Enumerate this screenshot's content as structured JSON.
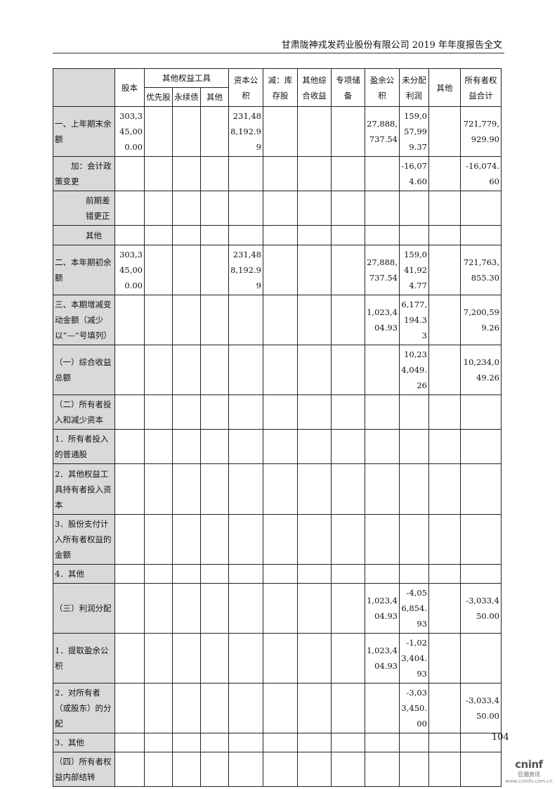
{
  "doc_header": "甘肃陇神戎发药业股份有限公司 2019 年年度报告全文",
  "columns": {
    "share_capital": "股本",
    "other_equity_tools": "其他权益工具",
    "preferred": "优先股",
    "perpetual": "永续债",
    "other_tool": "其他",
    "capital_reserve": "资本公积",
    "treasury": "减：库存股",
    "oci": "其他综合收益",
    "special_reserve": "专项储备",
    "surplus_reserve": "盈余公积",
    "retained": "未分配利润",
    "other": "其他",
    "total": "所有者权益合计"
  },
  "rows": [
    {
      "label": "一、上年期末余额",
      "cells": [
        "303,345,000.00",
        "",
        "",
        "",
        "231,488,192.99",
        "",
        "",
        "",
        "27,888,737.54",
        "159,057,999.37",
        "",
        "721,779,929.90"
      ]
    },
    {
      "label": "加：会计政策变更",
      "indent": true,
      "cells": [
        "",
        "",
        "",
        "",
        "",
        "",
        "",
        "",
        "",
        "-16,074.60",
        "",
        "-16,074.60"
      ]
    },
    {
      "label": "前期差错更正",
      "indent2": true,
      "cells": [
        "",
        "",
        "",
        "",
        "",
        "",
        "",
        "",
        "",
        "",
        "",
        ""
      ]
    },
    {
      "label": "其他",
      "indent2": true,
      "cells": [
        "",
        "",
        "",
        "",
        "",
        "",
        "",
        "",
        "",
        "",
        "",
        ""
      ]
    },
    {
      "label": "二、本年期初余额",
      "cells": [
        "303,345,000.00",
        "",
        "",
        "",
        "231,488,192.99",
        "",
        "",
        "",
        "27,888,737.54",
        "159,041,924.77",
        "",
        "721,763,855.30"
      ]
    },
    {
      "label": "三、本期增减变动金额（减少以“—”号填列）",
      "cells": [
        "",
        "",
        "",
        "",
        "",
        "",
        "",
        "",
        "1,023,404.93",
        "6,177,194.33",
        "",
        "7,200,599.26"
      ]
    },
    {
      "label": "（一）综合收益总额",
      "cells": [
        "",
        "",
        "",
        "",
        "",
        "",
        "",
        "",
        "",
        "10,234,049.26",
        "",
        "10,234,049.26"
      ]
    },
    {
      "label": "（二）所有者投入和减少资本",
      "cells": [
        "",
        "",
        "",
        "",
        "",
        "",
        "",
        "",
        "",
        "",
        "",
        ""
      ]
    },
    {
      "label": "1．所有者投入的普通股",
      "cells": [
        "",
        "",
        "",
        "",
        "",
        "",
        "",
        "",
        "",
        "",
        "",
        ""
      ]
    },
    {
      "label": "2．其他权益工具持有者投入资本",
      "cells": [
        "",
        "",
        "",
        "",
        "",
        "",
        "",
        "",
        "",
        "",
        "",
        ""
      ]
    },
    {
      "label": "3．股份支付计入所有者权益的金额",
      "cells": [
        "",
        "",
        "",
        "",
        "",
        "",
        "",
        "",
        "",
        "",
        "",
        ""
      ]
    },
    {
      "label": "4．其他",
      "cells": [
        "",
        "",
        "",
        "",
        "",
        "",
        "",
        "",
        "",
        "",
        "",
        ""
      ]
    },
    {
      "label": "（三）利润分配",
      "cells": [
        "",
        "",
        "",
        "",
        "",
        "",
        "",
        "",
        "1,023,404.93",
        "-4,056,854.93",
        "",
        "-3,033,450.00"
      ]
    },
    {
      "label": "1．提取盈余公积",
      "cells": [
        "",
        "",
        "",
        "",
        "",
        "",
        "",
        "",
        "1,023,404.93",
        "-1,023,404.93",
        "",
        ""
      ]
    },
    {
      "label": "2．对所有者（或股东）的分配",
      "cells": [
        "",
        "",
        "",
        "",
        "",
        "",
        "",
        "",
        "",
        "-3,033,450.00",
        "",
        "-3,033,450.00"
      ]
    },
    {
      "label": "3．其他",
      "cells": [
        "",
        "",
        "",
        "",
        "",
        "",
        "",
        "",
        "",
        "",
        "",
        ""
      ]
    },
    {
      "label": "（四）所有者权益内部结转",
      "cells": [
        "",
        "",
        "",
        "",
        "",
        "",
        "",
        "",
        "",
        "",
        "",
        ""
      ]
    }
  ],
  "page_number": "104",
  "logo": {
    "brand": "cninf",
    "cn": "巨潮资讯",
    "url": "www.cninfo.com.cn"
  }
}
